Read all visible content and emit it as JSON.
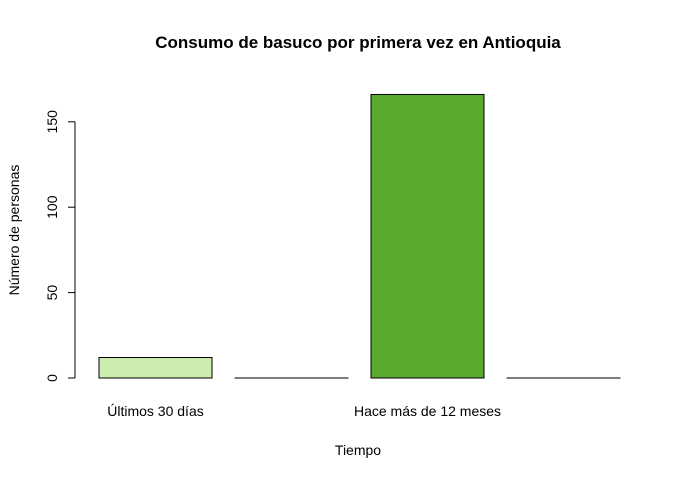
{
  "chart_data": {
    "type": "bar",
    "title": "Consumo de basuco por primera vez en Antioquia",
    "xlabel": "Tiempo",
    "ylabel": "Número de personas",
    "categories": [
      "Últimos 30 días",
      "",
      "Hace más de 12 meses",
      ""
    ],
    "values": [
      12,
      0,
      166,
      0
    ],
    "colors": [
      "#cdedb0",
      "#cdedb0",
      "#5aaa30",
      "#5aaa30"
    ],
    "ylim": [
      0,
      175
    ],
    "yticks": [
      0,
      50,
      100,
      150
    ],
    "grid": false,
    "legend": "none"
  }
}
